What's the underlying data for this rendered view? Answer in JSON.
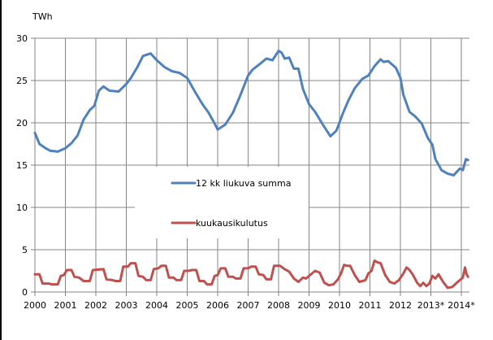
{
  "chart_data": {
    "type": "line",
    "title": "",
    "xlabel": "",
    "ylabel": "TWh",
    "ylim": [
      0,
      30
    ],
    "yticks": [
      0,
      5,
      10,
      15,
      20,
      25,
      30
    ],
    "xtick_labels": [
      "2000",
      "2001",
      "2002",
      "2003",
      "2004",
      "2005",
      "2006",
      "2007",
      "2008",
      "2009",
      "2010",
      "2011",
      "2012",
      "2013*",
      "2014*"
    ],
    "x_start": "2000-01",
    "x_frequency": "monthly",
    "grid": true,
    "legend_position": "inside-center-left",
    "series": [
      {
        "name": "12 kk liukuva summa",
        "color": "#4F81BD",
        "key_points": [
          [
            2000.0,
            18.8
          ],
          [
            2000.15,
            17.5
          ],
          [
            2000.35,
            17.0
          ],
          [
            2000.5,
            16.7
          ],
          [
            2000.75,
            16.6
          ],
          [
            2001.0,
            17.0
          ],
          [
            2001.2,
            17.6
          ],
          [
            2001.4,
            18.5
          ],
          [
            2001.6,
            20.4
          ],
          [
            2001.8,
            21.5
          ],
          [
            2001.95,
            22.0
          ],
          [
            2002.1,
            23.8
          ],
          [
            2002.25,
            24.3
          ],
          [
            2002.45,
            23.8
          ],
          [
            2002.75,
            23.7
          ],
          [
            2003.0,
            24.6
          ],
          [
            2003.15,
            25.3
          ],
          [
            2003.35,
            26.5
          ],
          [
            2003.55,
            27.9
          ],
          [
            2003.8,
            28.2
          ],
          [
            2004.0,
            27.4
          ],
          [
            2004.25,
            26.6
          ],
          [
            2004.5,
            26.1
          ],
          [
            2004.75,
            25.9
          ],
          [
            2005.0,
            25.3
          ],
          [
            2005.25,
            23.7
          ],
          [
            2005.5,
            22.2
          ],
          [
            2005.7,
            21.2
          ],
          [
            2005.9,
            19.9
          ],
          [
            2006.0,
            19.2
          ],
          [
            2006.25,
            19.8
          ],
          [
            2006.5,
            21.2
          ],
          [
            2006.75,
            23.3
          ],
          [
            2007.0,
            25.6
          ],
          [
            2007.15,
            26.3
          ],
          [
            2007.4,
            27.0
          ],
          [
            2007.6,
            27.6
          ],
          [
            2007.8,
            27.4
          ],
          [
            2008.0,
            28.5
          ],
          [
            2008.1,
            28.3
          ],
          [
            2008.2,
            27.6
          ],
          [
            2008.35,
            27.7
          ],
          [
            2008.5,
            26.4
          ],
          [
            2008.65,
            26.4
          ],
          [
            2008.8,
            24.0
          ],
          [
            2009.0,
            22.2
          ],
          [
            2009.2,
            21.3
          ],
          [
            2009.45,
            19.8
          ],
          [
            2009.7,
            18.4
          ],
          [
            2009.9,
            19.1
          ],
          [
            2010.1,
            21.0
          ],
          [
            2010.3,
            22.7
          ],
          [
            2010.5,
            24.1
          ],
          [
            2010.75,
            25.2
          ],
          [
            2010.95,
            25.6
          ],
          [
            2011.15,
            26.7
          ],
          [
            2011.35,
            27.5
          ],
          [
            2011.45,
            27.2
          ],
          [
            2011.6,
            27.3
          ],
          [
            2011.85,
            26.5
          ],
          [
            2012.0,
            25.3
          ],
          [
            2012.1,
            23.3
          ],
          [
            2012.3,
            21.3
          ],
          [
            2012.5,
            20.7
          ],
          [
            2012.7,
            19.9
          ],
          [
            2012.9,
            18.2
          ],
          [
            2013.05,
            17.4
          ],
          [
            2013.15,
            15.7
          ],
          [
            2013.35,
            14.4
          ],
          [
            2013.55,
            14.0
          ],
          [
            2013.75,
            13.8
          ],
          [
            2013.95,
            14.6
          ],
          [
            2014.05,
            14.4
          ],
          [
            2014.15,
            15.7
          ],
          [
            2014.22,
            15.6
          ]
        ]
      },
      {
        "name": "kuukausikulutus",
        "color": "#C0504D",
        "key_points": [
          [
            2000.0,
            2.1
          ],
          [
            2000.15,
            2.1
          ],
          [
            2000.25,
            1.0
          ],
          [
            2000.45,
            1.0
          ],
          [
            2000.55,
            0.9
          ],
          [
            2000.75,
            0.9
          ],
          [
            2000.85,
            1.9
          ],
          [
            2000.95,
            2.0
          ],
          [
            2001.05,
            2.6
          ],
          [
            2001.2,
            2.6
          ],
          [
            2001.3,
            1.8
          ],
          [
            2001.45,
            1.7
          ],
          [
            2001.6,
            1.3
          ],
          [
            2001.8,
            1.3
          ],
          [
            2001.9,
            2.6
          ],
          [
            2002.25,
            2.7
          ],
          [
            2002.35,
            1.5
          ],
          [
            2002.55,
            1.4
          ],
          [
            2002.65,
            1.3
          ],
          [
            2002.8,
            1.3
          ],
          [
            2002.9,
            3.0
          ],
          [
            2003.05,
            3.0
          ],
          [
            2003.15,
            3.4
          ],
          [
            2003.3,
            3.4
          ],
          [
            2003.4,
            1.9
          ],
          [
            2003.55,
            1.8
          ],
          [
            2003.65,
            1.4
          ],
          [
            2003.8,
            1.4
          ],
          [
            2003.9,
            2.7
          ],
          [
            2004.05,
            2.8
          ],
          [
            2004.15,
            3.1
          ],
          [
            2004.3,
            3.1
          ],
          [
            2004.4,
            1.7
          ],
          [
            2004.55,
            1.7
          ],
          [
            2004.65,
            1.4
          ],
          [
            2004.8,
            1.4
          ],
          [
            2004.9,
            2.5
          ],
          [
            2005.05,
            2.5
          ],
          [
            2005.15,
            2.6
          ],
          [
            2005.3,
            2.6
          ],
          [
            2005.4,
            1.3
          ],
          [
            2005.55,
            1.3
          ],
          [
            2005.65,
            0.9
          ],
          [
            2005.8,
            0.9
          ],
          [
            2005.9,
            1.9
          ],
          [
            2006.0,
            2.0
          ],
          [
            2006.1,
            2.8
          ],
          [
            2006.25,
            2.8
          ],
          [
            2006.35,
            1.8
          ],
          [
            2006.5,
            1.8
          ],
          [
            2006.6,
            1.6
          ],
          [
            2006.75,
            1.6
          ],
          [
            2006.85,
            2.8
          ],
          [
            2007.0,
            2.8
          ],
          [
            2007.1,
            3.0
          ],
          [
            2007.25,
            3.0
          ],
          [
            2007.35,
            2.1
          ],
          [
            2007.5,
            2.0
          ],
          [
            2007.6,
            1.5
          ],
          [
            2007.75,
            1.5
          ],
          [
            2007.85,
            3.1
          ],
          [
            2008.05,
            3.1
          ],
          [
            2008.2,
            2.7
          ],
          [
            2008.35,
            2.4
          ],
          [
            2008.5,
            1.6
          ],
          [
            2008.65,
            1.2
          ],
          [
            2008.8,
            1.7
          ],
          [
            2008.9,
            1.6
          ],
          [
            2009.1,
            2.2
          ],
          [
            2009.2,
            2.5
          ],
          [
            2009.35,
            2.3
          ],
          [
            2009.5,
            1.1
          ],
          [
            2009.65,
            0.8
          ],
          [
            2009.8,
            0.9
          ],
          [
            2009.95,
            1.5
          ],
          [
            2010.05,
            2.2
          ],
          [
            2010.15,
            3.2
          ],
          [
            2010.25,
            3.1
          ],
          [
            2010.35,
            3.1
          ],
          [
            2010.5,
            2.0
          ],
          [
            2010.65,
            1.2
          ],
          [
            2010.85,
            1.4
          ],
          [
            2010.95,
            2.2
          ],
          [
            2011.05,
            2.5
          ],
          [
            2011.15,
            3.7
          ],
          [
            2011.25,
            3.5
          ],
          [
            2011.35,
            3.4
          ],
          [
            2011.5,
            2.0
          ],
          [
            2011.65,
            1.2
          ],
          [
            2011.8,
            1.0
          ],
          [
            2011.95,
            1.4
          ],
          [
            2012.1,
            2.2
          ],
          [
            2012.2,
            2.9
          ],
          [
            2012.3,
            2.6
          ],
          [
            2012.4,
            2.1
          ],
          [
            2012.55,
            1.1
          ],
          [
            2012.65,
            0.7
          ],
          [
            2012.75,
            1.1
          ],
          [
            2012.85,
            0.7
          ],
          [
            2012.95,
            1.0
          ],
          [
            2013.05,
            1.9
          ],
          [
            2013.15,
            1.6
          ],
          [
            2013.25,
            2.1
          ],
          [
            2013.4,
            1.2
          ],
          [
            2013.55,
            0.5
          ],
          [
            2013.7,
            0.6
          ],
          [
            2013.85,
            1.1
          ],
          [
            2013.95,
            1.4
          ],
          [
            2014.05,
            1.7
          ],
          [
            2014.12,
            2.9
          ],
          [
            2014.17,
            2.1
          ],
          [
            2014.22,
            1.8
          ]
        ]
      }
    ]
  }
}
